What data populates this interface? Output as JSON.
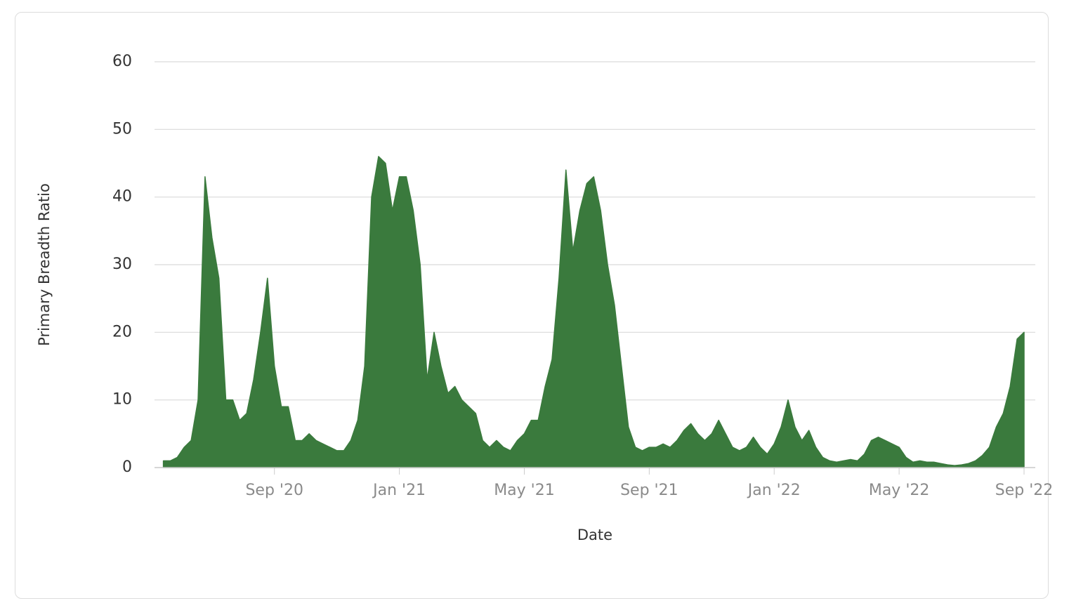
{
  "chart_data": {
    "type": "area",
    "x_label": "Date",
    "y_label": "Primary Breadth Ratio",
    "color": "#3a7a3d",
    "grid": true,
    "ylim": [
      0,
      60
    ],
    "yticks": [
      0,
      10,
      20,
      30,
      40,
      50,
      60
    ],
    "categories": [
      null,
      null,
      null,
      null,
      null,
      null,
      null,
      null,
      null,
      null,
      null,
      null,
      null,
      null,
      null,
      null,
      "Sep '20",
      null,
      null,
      null,
      null,
      null,
      null,
      null,
      null,
      null,
      null,
      null,
      null,
      null,
      null,
      null,
      null,
      null,
      "Jan '21",
      null,
      null,
      null,
      null,
      null,
      null,
      null,
      null,
      null,
      null,
      null,
      null,
      null,
      null,
      null,
      null,
      null,
      "May '21",
      null,
      null,
      null,
      null,
      null,
      null,
      null,
      null,
      null,
      null,
      null,
      null,
      null,
      null,
      null,
      null,
      null,
      "Sep '21",
      null,
      null,
      null,
      null,
      null,
      null,
      null,
      null,
      null,
      null,
      null,
      null,
      null,
      null,
      null,
      null,
      null,
      "Jan '22",
      null,
      null,
      null,
      null,
      null,
      null,
      null,
      null,
      null,
      null,
      null,
      null,
      null,
      null,
      null,
      null,
      null,
      "May '22",
      null,
      null,
      null,
      null,
      null,
      null,
      null,
      null,
      null,
      null,
      null,
      null,
      null,
      null,
      null,
      null,
      null,
      "Sep '22"
    ],
    "values": [
      1,
      1,
      1.5,
      3,
      4,
      10,
      43,
      34,
      28,
      10,
      10,
      7,
      8,
      13,
      20,
      28,
      15,
      9,
      9,
      4,
      4,
      5,
      4,
      3.5,
      3,
      2.5,
      2.5,
      4,
      7,
      15,
      40,
      46,
      45,
      38,
      43,
      43,
      38,
      30,
      13,
      20,
      15,
      11,
      12,
      10,
      9,
      8,
      4,
      3,
      4,
      3,
      2.5,
      4,
      5,
      7,
      7,
      12,
      16,
      28,
      44,
      32,
      38,
      42,
      43,
      38,
      30,
      24,
      15,
      6,
      3,
      2.5,
      3,
      3,
      3.5,
      3,
      4,
      5.5,
      6.5,
      5,
      4,
      5,
      7,
      5,
      3,
      2.5,
      3,
      4.5,
      3,
      2,
      3.5,
      6,
      10,
      6,
      4,
      5.5,
      3,
      1.5,
      1,
      0.8,
      1,
      1.2,
      1,
      2,
      4,
      4.5,
      4,
      3.5,
      3,
      1.5,
      0.8,
      1,
      0.8,
      0.8,
      0.6,
      0.4,
      0.3,
      0.4,
      0.6,
      1,
      1.8,
      3,
      6,
      8,
      12,
      19,
      20
    ]
  }
}
